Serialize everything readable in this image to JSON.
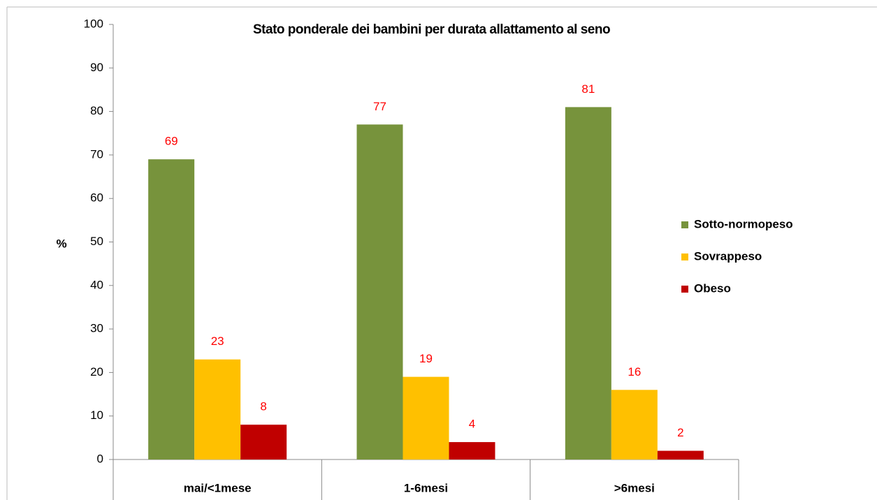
{
  "chart_data": {
    "type": "bar",
    "title": "Stato ponderale dei bambini  per durata allattamento al seno",
    "y_label": "%",
    "categories": [
      "mai/<1mese",
      "1-6mesi",
      ">6mesi"
    ],
    "series": [
      {
        "name": "Sotto-normopeso",
        "color": "#77933c",
        "values": [
          69,
          77,
          81
        ]
      },
      {
        "name": "Sovrappeso",
        "color": "#ffc000",
        "values": [
          23,
          19,
          16
        ]
      },
      {
        "name": "Obeso",
        "color": "#c00000",
        "values": [
          8,
          4,
          2
        ]
      }
    ],
    "ylim": [
      0,
      100
    ],
    "yticks": [
      0,
      10,
      20,
      30,
      40,
      50,
      60,
      70,
      80,
      90,
      100
    ],
    "value_label_color": "#ff0000",
    "legend": "right"
  }
}
